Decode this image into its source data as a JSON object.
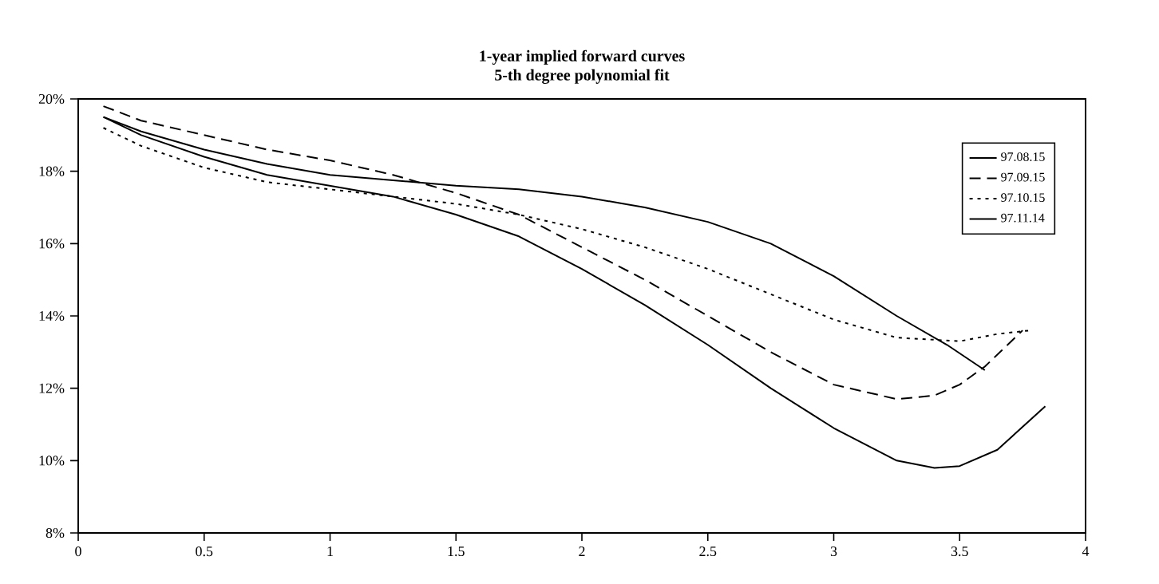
{
  "chart_data": {
    "type": "line",
    "title": "1-year implied forward curves\n5-th degree polynomial fit",
    "xlim": [
      0,
      4
    ],
    "xticks": [
      0,
      0.5,
      1,
      1.5,
      2,
      2.5,
      3,
      3.5,
      4
    ],
    "ylim": [
      8,
      20
    ],
    "yticks": [
      {
        "value": 8,
        "label": "8%"
      },
      {
        "value": 10,
        "label": "10%"
      },
      {
        "value": 12,
        "label": "12%"
      },
      {
        "value": 14,
        "label": "14%"
      },
      {
        "value": 16,
        "label": "16%"
      },
      {
        "value": 18,
        "label": "18%"
      },
      {
        "value": 20,
        "label": "20%"
      }
    ],
    "legend": "top right",
    "grid": false,
    "marker": "none",
    "series": [
      {
        "name": "97.08.15",
        "color": "#000000",
        "line_style": "solid",
        "x": [
          0.1,
          0.25,
          0.5,
          0.75,
          1.0,
          1.25,
          1.5,
          1.75,
          2.0,
          2.25,
          2.5,
          2.75,
          3.0,
          3.25,
          3.4,
          3.5,
          3.65,
          3.84
        ],
        "values": [
          19.5,
          19.0,
          18.4,
          17.9,
          17.6,
          17.3,
          16.8,
          16.2,
          15.3,
          14.3,
          13.2,
          12.0,
          10.9,
          10.0,
          9.8,
          9.85,
          10.3,
          11.5
        ]
      },
      {
        "name": "97.09.15",
        "color": "#000000",
        "line_style": "dashed",
        "x": [
          0.1,
          0.25,
          0.5,
          0.75,
          1.0,
          1.25,
          1.5,
          1.75,
          2.0,
          2.25,
          2.5,
          2.75,
          3.0,
          3.25,
          3.4,
          3.5,
          3.6,
          3.75
        ],
        "values": [
          19.8,
          19.4,
          19.0,
          18.6,
          18.3,
          17.9,
          17.4,
          16.8,
          15.9,
          15.0,
          14.0,
          13.0,
          12.1,
          11.7,
          11.8,
          12.1,
          12.6,
          13.6
        ]
      },
      {
        "name": "97.10.15",
        "color": "#000000",
        "line_style": "dotted",
        "x": [
          0.1,
          0.25,
          0.5,
          0.75,
          1.0,
          1.25,
          1.5,
          1.75,
          2.0,
          2.25,
          2.5,
          2.75,
          3.0,
          3.25,
          3.5,
          3.65,
          3.78
        ],
        "values": [
          19.2,
          18.7,
          18.1,
          17.7,
          17.5,
          17.3,
          17.1,
          16.8,
          16.4,
          15.9,
          15.3,
          14.6,
          13.9,
          13.4,
          13.3,
          13.5,
          13.6
        ]
      },
      {
        "name": "97.11.14",
        "color": "#000000",
        "line_style": "solid",
        "x": [
          0.1,
          0.25,
          0.5,
          0.75,
          1.0,
          1.25,
          1.5,
          1.75,
          2.0,
          2.25,
          2.5,
          2.75,
          3.0,
          3.25,
          3.45,
          3.6
        ],
        "values": [
          19.5,
          19.1,
          18.6,
          18.2,
          17.9,
          17.75,
          17.6,
          17.5,
          17.3,
          17.0,
          16.6,
          16.0,
          15.1,
          14.0,
          13.2,
          12.5
        ]
      }
    ]
  }
}
